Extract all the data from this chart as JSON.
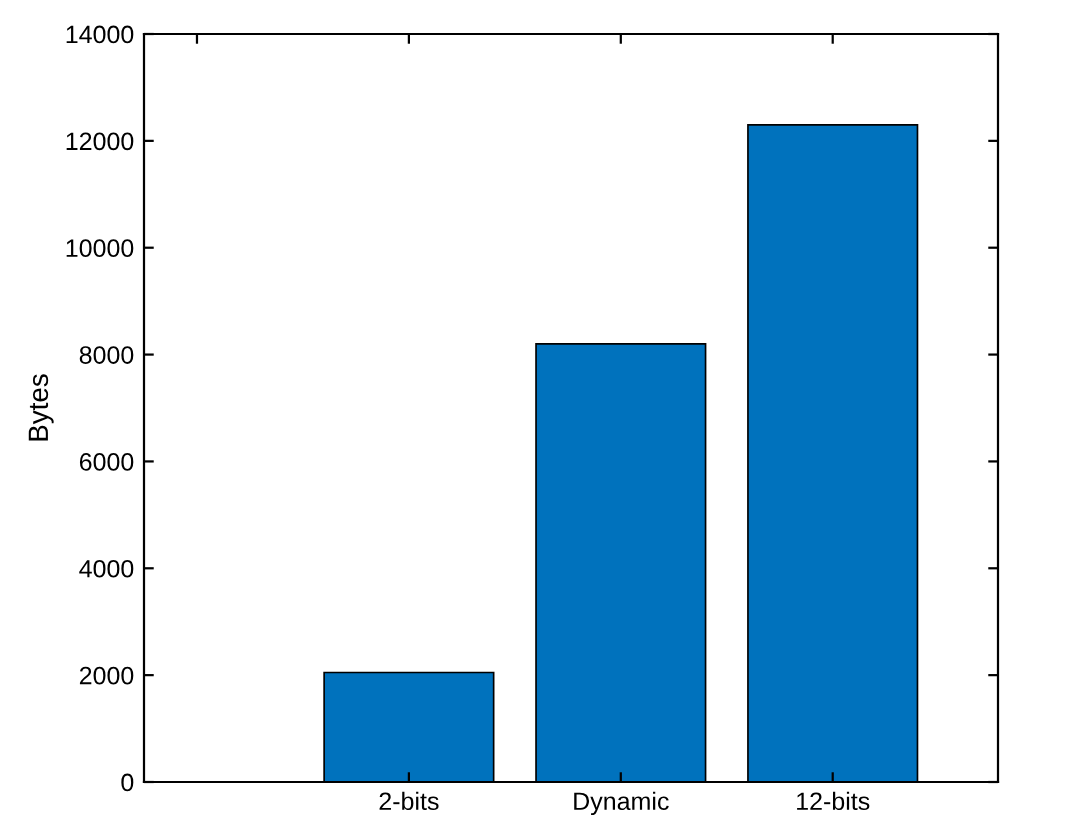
{
  "chart_data": {
    "type": "bar",
    "ylabel": "Bytes",
    "categories": [
      null,
      "2-bits",
      "Dynamic",
      "12-bits"
    ],
    "values": [
      null,
      2050,
      8200,
      12300
    ],
    "color": "#0072bd",
    "ylim": [
      0,
      14000
    ],
    "yticks": [
      0,
      2000,
      4000,
      6000,
      8000,
      10000,
      12000,
      14000
    ],
    "grid": false,
    "legend": false
  }
}
